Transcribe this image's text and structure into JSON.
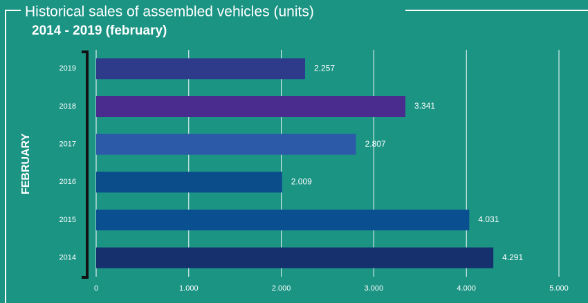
{
  "chart_data": {
    "type": "bar",
    "orientation": "horizontal",
    "title": "Historical sales of assembled vehicles (units)",
    "subtitle": "2014 - 2019 (february)",
    "y_label": "FEBRUARY",
    "categories": [
      "2019",
      "2018",
      "2017",
      "2016",
      "2015",
      "2014"
    ],
    "values": [
      2257,
      3341,
      2807,
      2009,
      4031,
      4291
    ],
    "value_labels": [
      "2.257",
      "3.341",
      "2.807",
      "2.009",
      "4.031",
      "4.291"
    ],
    "colors": [
      "#2e3a8a",
      "#4a2b8e",
      "#2c5aa9",
      "#0b4d8b",
      "#0a4f8f",
      "#15306d"
    ],
    "xlim": [
      0,
      5000
    ],
    "xticks": [
      0,
      {
        "value": 1000,
        "label": "1.000"
      },
      {
        "value": 2000,
        "label": "2.000"
      },
      {
        "value": 3000,
        "label": "3.000"
      },
      {
        "value": 4000,
        "label": "4.000"
      },
      {
        "value": 5000,
        "label": "5.000"
      }
    ],
    "grid": true
  }
}
